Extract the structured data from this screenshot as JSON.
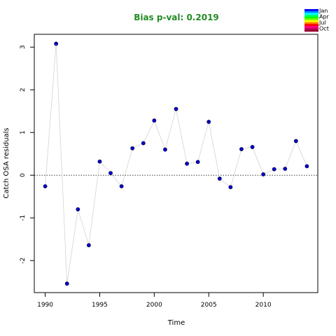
{
  "chart_data": {
    "type": "scatter",
    "title": "Bias p-val: 0.2019",
    "title_color": "#228B22",
    "xlabel": "Time",
    "ylabel": "Catch OSA residuals",
    "xlim": [
      1989,
      2015
    ],
    "ylim": [
      -2.75,
      3.3
    ],
    "xticks": [
      1990,
      1995,
      2000,
      2005,
      2010
    ],
    "yticks": [
      -2,
      -1,
      0,
      1,
      2,
      3
    ],
    "reference_line": 0,
    "point_color": "#0000CC",
    "line_color": "#D3D3D3",
    "grid": false,
    "legend_position": "top-right",
    "legend_labels": [
      "Jan",
      "Apr",
      "Jul",
      "Oct"
    ],
    "legend_colors": [
      "#0000FF",
      "#0080FF",
      "#00FFFF",
      "#00FF80",
      "#00FF00",
      "#80FF00",
      "#FFFF00",
      "#FF8000",
      "#FF0000",
      "#FF0080",
      "#CC0066",
      "#990033"
    ],
    "x": [
      1990,
      1991,
      1992,
      1993,
      1994,
      1995,
      1996,
      1997,
      1998,
      1999,
      2000,
      2001,
      2002,
      2003,
      2004,
      2005,
      2006,
      2007,
      2008,
      2009,
      2010,
      2011,
      2012,
      2013,
      2014
    ],
    "y": [
      -0.26,
      3.08,
      -2.54,
      -0.8,
      -1.64,
      0.32,
      0.05,
      -0.26,
      0.63,
      0.75,
      1.28,
      0.6,
      1.55,
      0.27,
      0.31,
      1.25,
      -0.08,
      -0.28,
      0.61,
      0.66,
      0.02,
      0.14,
      0.15,
      0.8,
      0.21
    ]
  }
}
